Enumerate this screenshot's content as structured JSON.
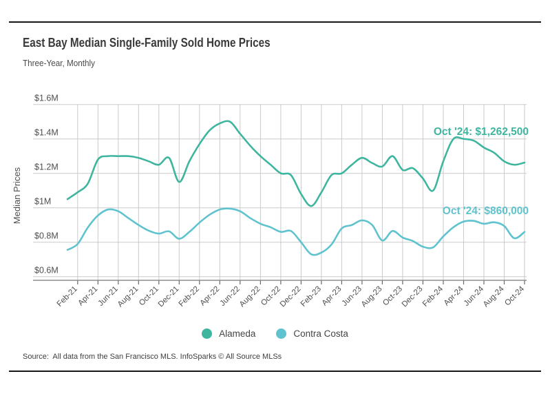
{
  "header": {
    "title": "East Bay Median Single-Family Sold Home Prices",
    "subtitle": "Three-Year, Monthly"
  },
  "chart_data": {
    "type": "line",
    "title": "East Bay Median Single-Family Sold Home Prices",
    "subtitle": "Three-Year, Monthly",
    "ylabel": "Median Prices",
    "xlabel": "",
    "units": "millions USD",
    "ylim": [
      0.6,
      1.6
    ],
    "grid": true,
    "legend_position": "bottom",
    "grid_color": "#cacaca",
    "axis_line_color": "#8d8d8d",
    "axis_text_color": "#4f4f4f",
    "y_ticks": [
      0.6,
      0.8,
      1.0,
      1.2,
      1.4,
      1.6
    ],
    "y_tick_labels": [
      "$0.6M",
      "$0.8M",
      "$1M",
      "$1.2M",
      "$1.4M",
      "$1.6M"
    ],
    "x_tick_labels": [
      "Feb-21",
      "Apr-21",
      "Jun-21",
      "Aug-21",
      "Oct-21",
      "Dec-21",
      "Feb-22",
      "Apr-22",
      "Jun-22",
      "Aug-22",
      "Oct-22",
      "Dec-22",
      "Feb-23",
      "Apr-23",
      "Jun-23",
      "Aug-23",
      "Oct-23",
      "Dec-23",
      "Feb-24",
      "Apr-24",
      "Jun-24",
      "Aug-24",
      "Oct-24"
    ],
    "months": [
      "Jan-21",
      "Feb-21",
      "Mar-21",
      "Apr-21",
      "May-21",
      "Jun-21",
      "Jul-21",
      "Aug-21",
      "Sep-21",
      "Oct-21",
      "Nov-21",
      "Dec-21",
      "Jan-22",
      "Feb-22",
      "Mar-22",
      "Apr-22",
      "May-22",
      "Jun-22",
      "Jul-22",
      "Aug-22",
      "Sep-22",
      "Oct-22",
      "Nov-22",
      "Dec-22",
      "Jan-23",
      "Feb-23",
      "Mar-23",
      "Apr-23",
      "May-23",
      "Jun-23",
      "Jul-23",
      "Aug-23",
      "Sep-23",
      "Oct-23",
      "Nov-23",
      "Dec-23",
      "Jan-24",
      "Feb-24",
      "Mar-24",
      "Apr-24",
      "May-24",
      "Jun-24",
      "Jul-24",
      "Aug-24",
      "Sep-24",
      "Oct-24"
    ],
    "series": [
      {
        "name": "Alameda",
        "color": "#3eb59e",
        "values": [
          1.05,
          1.09,
          1.14,
          1.28,
          1.3,
          1.3,
          1.3,
          1.29,
          1.27,
          1.25,
          1.29,
          1.15,
          1.27,
          1.37,
          1.45,
          1.49,
          1.5,
          1.43,
          1.36,
          1.3,
          1.25,
          1.2,
          1.19,
          1.08,
          1.01,
          1.09,
          1.19,
          1.2,
          1.25,
          1.29,
          1.26,
          1.24,
          1.3,
          1.22,
          1.23,
          1.17,
          1.1,
          1.27,
          1.4,
          1.4,
          1.39,
          1.35,
          1.32,
          1.27,
          1.25,
          1.2625
        ]
      },
      {
        "name": "Contra Costa",
        "color": "#5fc3cf",
        "values": [
          0.755,
          0.79,
          0.885,
          0.955,
          0.99,
          0.98,
          0.94,
          0.9,
          0.867,
          0.85,
          0.863,
          0.82,
          0.86,
          0.914,
          0.96,
          0.99,
          0.995,
          0.98,
          0.94,
          0.907,
          0.887,
          0.86,
          0.865,
          0.8,
          0.73,
          0.74,
          0.787,
          0.88,
          0.9,
          0.927,
          0.9,
          0.81,
          0.865,
          0.827,
          0.807,
          0.774,
          0.77,
          0.834,
          0.887,
          0.92,
          0.924,
          0.907,
          0.916,
          0.894,
          0.823,
          0.86
        ]
      }
    ],
    "annotations": [
      {
        "series": "Alameda",
        "text": "Oct '24: $1,262,500"
      },
      {
        "series": "Contra Costa",
        "text": "Oct '24: $860,000"
      }
    ]
  },
  "footer": {
    "source": "Source:  All data from the San Francisco MLS. InfoSparks © All Source MLSs"
  }
}
